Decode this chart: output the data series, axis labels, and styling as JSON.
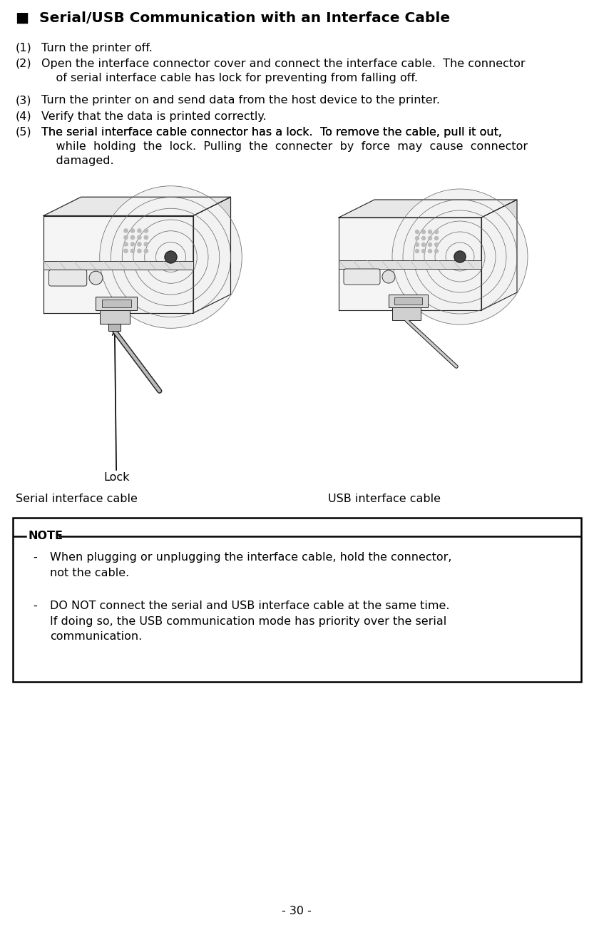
{
  "title": "■  Serial/USB Communication with an Interface Cable",
  "title_fontsize": 14.5,
  "body_fontsize": 11.5,
  "page_number": "- 30 -",
  "step1_num": "(1)",
  "step1_text": "Turn the printer off.",
  "step2_num": "(2)",
  "step2_text": "Open the interface connector cover and connect the interface cable.  The connector\n    of serial interface cable has lock for preventing from falling off.",
  "step3_num": "(3)",
  "step3_text": "Turn the printer on and send data from the host device to the printer.",
  "step4_num": "(4)",
  "step4_text": "Verify that the data is printed correctly.",
  "step5_num": "(5)",
  "step5_line1": "The serial interface cable connector has a lock.  To remove the cable, pull it out,",
  "step5_line2": "    while  holding  the  lock.  Pulling  the  connecter  by  force  may  cause  connector",
  "step5_line3": "    damaged.",
  "label_serial": "Serial interface cable",
  "label_usb": "USB interface cable",
  "label_lock": "Lock",
  "note_title": "NOTE",
  "note_item1_bullet": "-",
  "note_item1_text": "When plugging or unplugging the interface cable, hold the connector,\nnot the cable.",
  "note_item2_bullet": "-",
  "note_item2_text": "DO NOT connect the serial and USB interface cable at the same time.\nIf doing so, the USB communication mode has priority over the serial\ncommunication.",
  "bg_color": "#ffffff",
  "text_color": "#000000"
}
